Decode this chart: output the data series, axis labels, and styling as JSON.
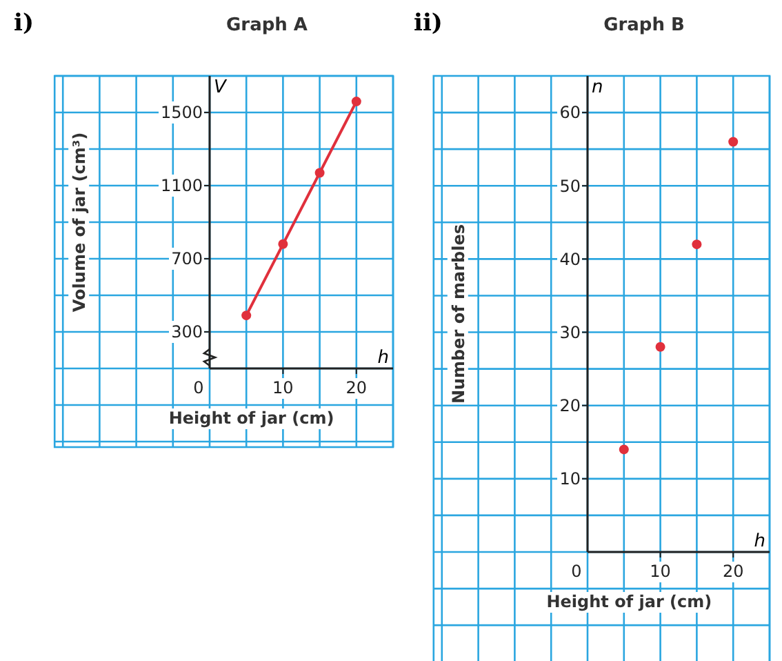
{
  "chart_data": [
    {
      "type": "line",
      "title": "Graph A",
      "xlabel": "Height of jar (cm)",
      "ylabel": "Volume of jar (cm³)",
      "x": [
        5,
        10,
        15,
        20
      ],
      "series": [
        {
          "color": "#e0303c",
          "values": [
            390,
            780,
            1170,
            1560
          ]
        }
      ],
      "marker": "circle",
      "line_style": "solid",
      "grid": true,
      "xlim": [
        0,
        25
      ],
      "xticks": [
        0,
        10,
        20
      ],
      "ylim": [
        100,
        1700
      ],
      "yticks": [
        300,
        700,
        1100,
        1500
      ],
      "annotations": [
        "i)",
        "V",
        "h"
      ]
    },
    {
      "type": "scatter",
      "title": "Graph B",
      "xlabel": "Height of jar (cm)",
      "ylabel": "Number of marbles",
      "x": [
        5,
        10,
        15,
        20
      ],
      "series": [
        {
          "color": "#e0303c",
          "values": [
            14,
            28,
            42,
            56
          ]
        }
      ],
      "marker": "circle",
      "grid": true,
      "xlim": [
        0,
        25
      ],
      "xticks": [
        0,
        10,
        20
      ],
      "ylim": [
        0,
        65
      ],
      "yticks": [
        10,
        20,
        30,
        40,
        50,
        60
      ],
      "annotations": [
        "ii)",
        "n",
        "h"
      ]
    }
  ]
}
